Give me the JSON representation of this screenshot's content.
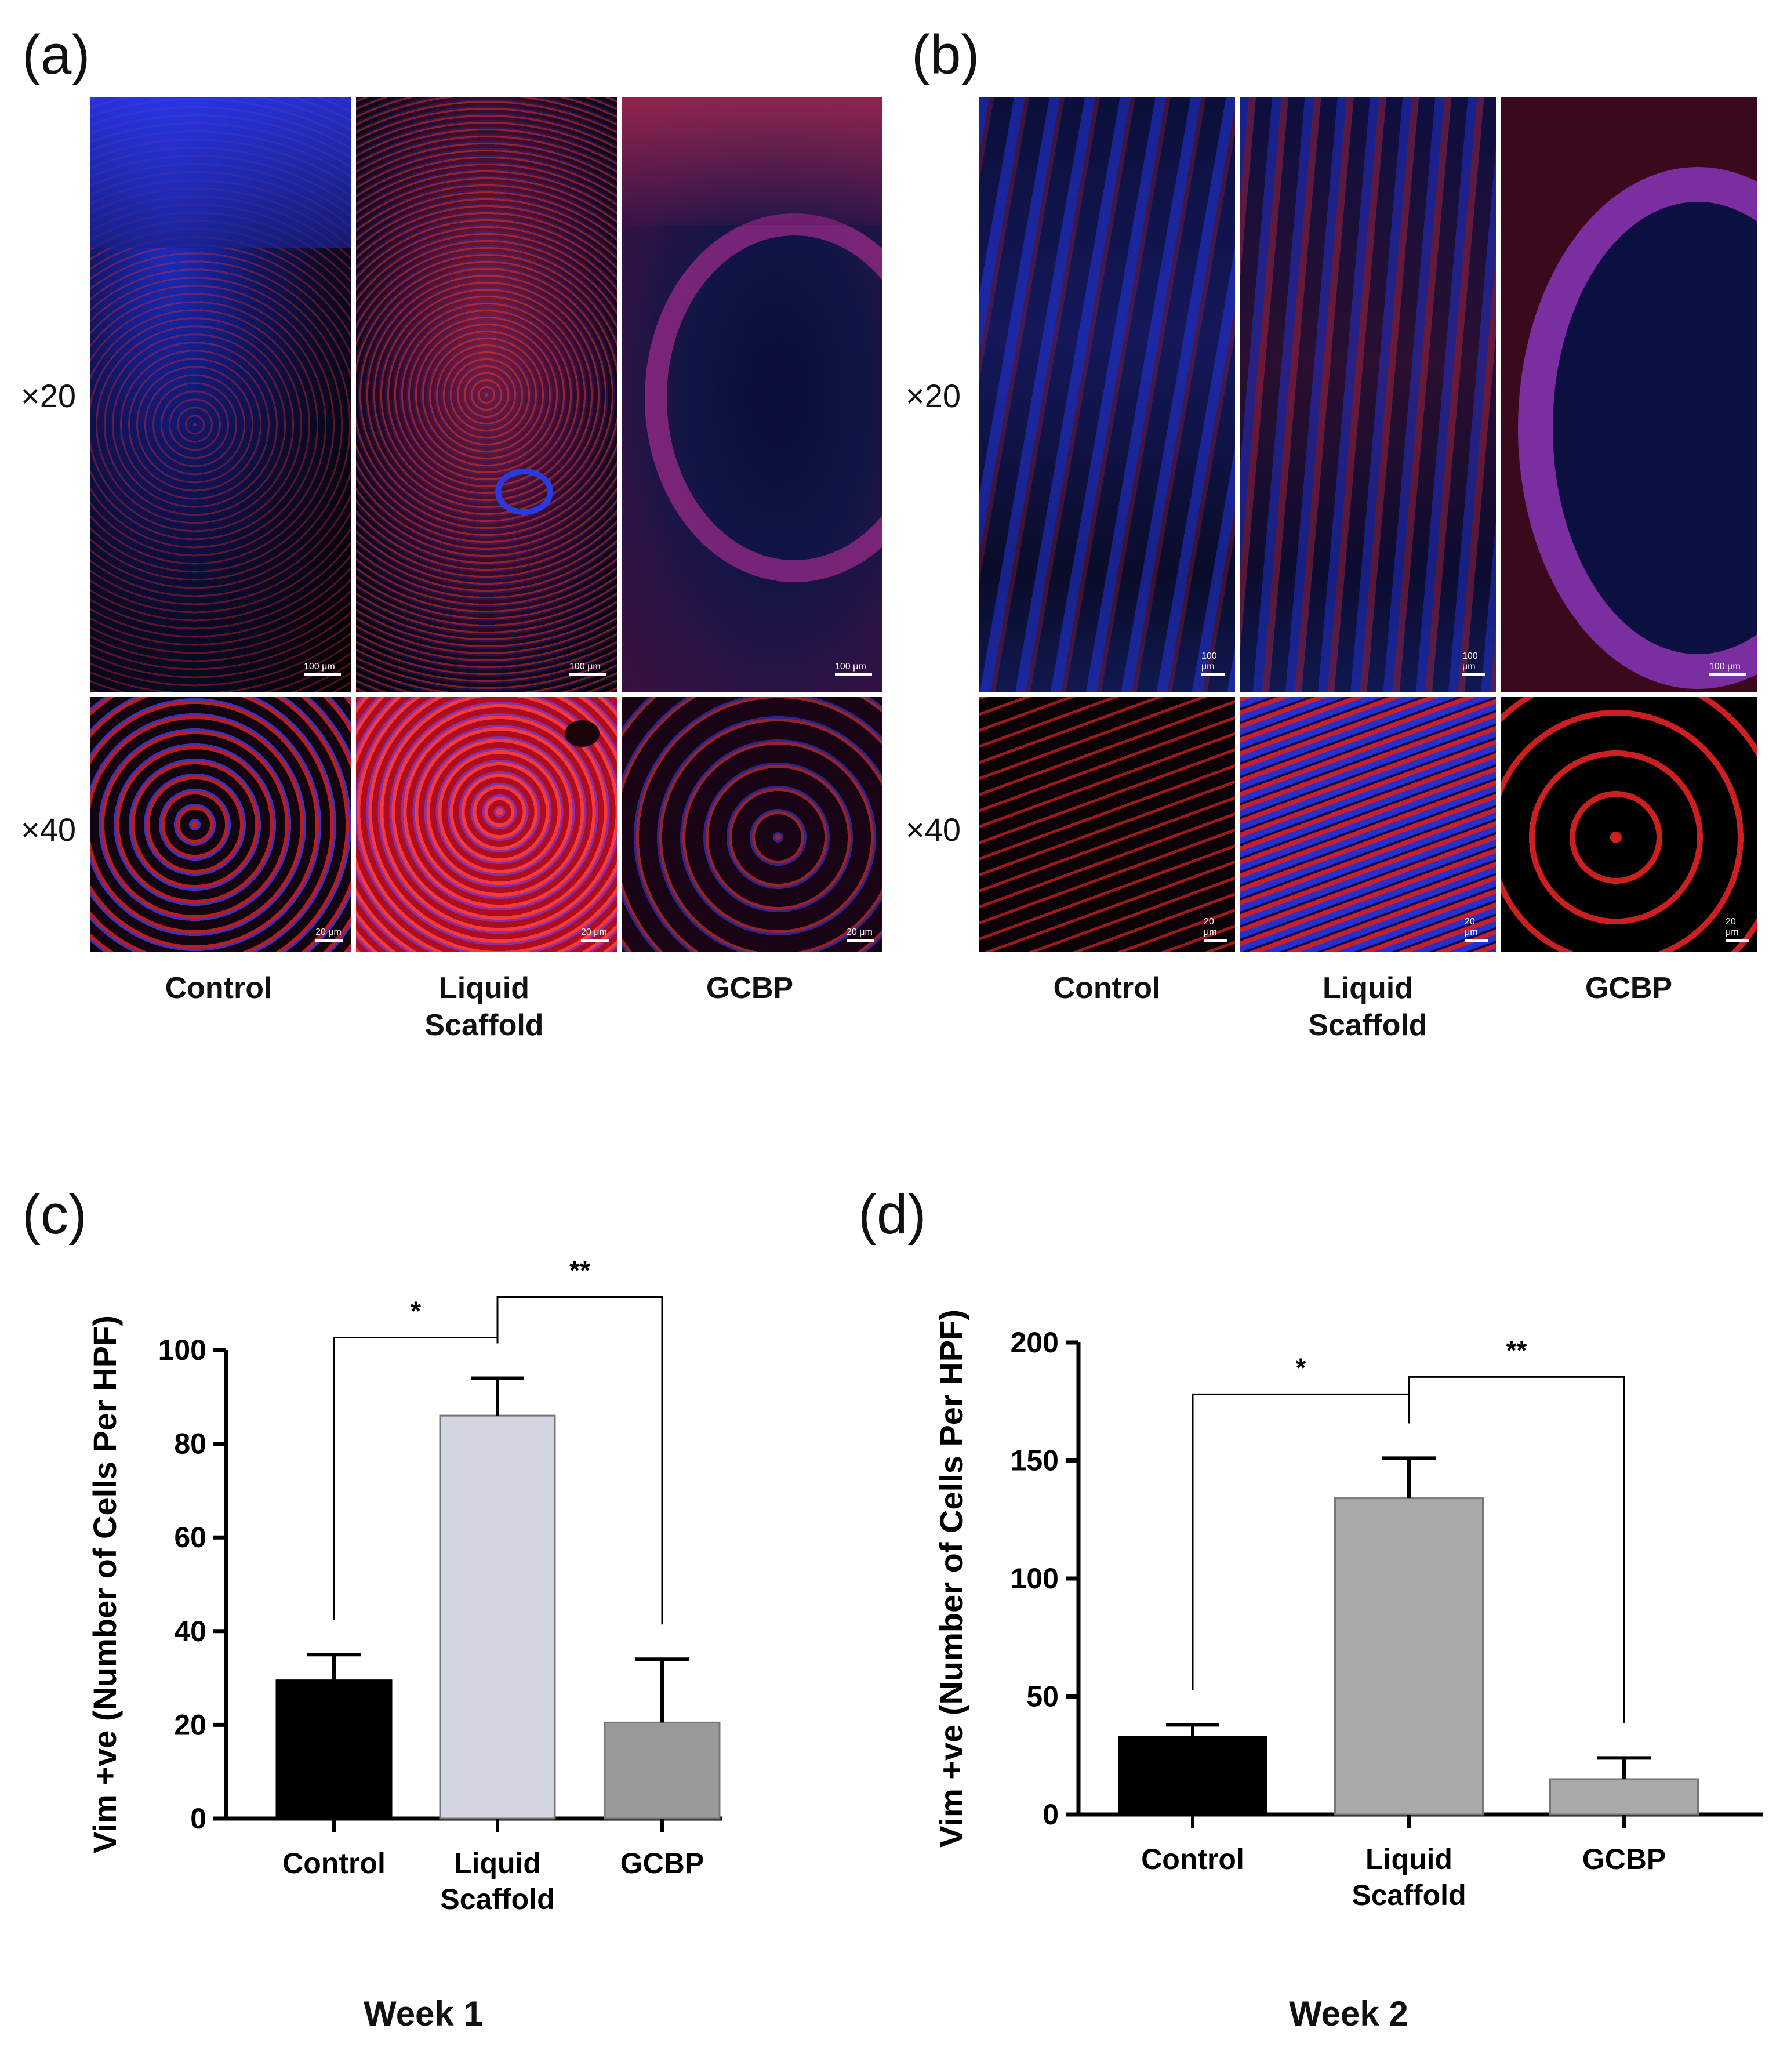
{
  "panel_labels": {
    "a": "(a)",
    "b": "(b)",
    "c": "(c)",
    "d": "(d)"
  },
  "magnifications": {
    "low": "×20",
    "high": "×40"
  },
  "micrograph_conditions": [
    {
      "line1": "Control",
      "line2": ""
    },
    {
      "line1": "Liquid",
      "line2": "Scaffold"
    },
    {
      "line1": "GCBP",
      "line2": ""
    }
  ],
  "scale_bars": {
    "low": "100 μm",
    "high": "20 μm"
  },
  "colors": {
    "nuclei": "#2a3cff",
    "vimentin": "#ff2a2a",
    "background": "#000000"
  },
  "chart_data": [
    {
      "type": "bar",
      "panel": "(c)",
      "caption": "Week 1",
      "ylabel": "Vim +ve (Number of Cells Per HPF)",
      "categories": [
        "Control",
        "Liquid Scaffold",
        "GCBP"
      ],
      "category_lines": [
        [
          "Control"
        ],
        [
          "Liquid",
          "Scaffold"
        ],
        [
          "GCBP"
        ]
      ],
      "values": [
        29.5,
        86,
        20.5
      ],
      "errors": [
        5.5,
        8,
        13.5
      ],
      "bar_colors": [
        "#000000",
        "#d3d5e0",
        "#999999"
      ],
      "ylim": [
        0,
        100
      ],
      "yticks": [
        "0",
        "20",
        "40",
        "60",
        "80",
        "100"
      ],
      "significance": [
        {
          "from": 0,
          "to": 1,
          "label": "*"
        },
        {
          "from": 1,
          "to": 2,
          "label": "**"
        }
      ]
    },
    {
      "type": "bar",
      "panel": "(d)",
      "caption": "Week 2",
      "ylabel": "Vim +ve (Number of Cells Per HPF)",
      "categories": [
        "Control",
        "Liquid Scaffold",
        "GCBP"
      ],
      "category_lines": [
        [
          "Control"
        ],
        [
          "Liquid",
          "Scaffold"
        ],
        [
          "GCBP"
        ]
      ],
      "values": [
        33,
        134,
        15
      ],
      "errors": [
        5,
        17,
        9
      ],
      "bar_colors": [
        "#000000",
        "#a9a9a9",
        "#a9a9a9"
      ],
      "ylim": [
        0,
        200
      ],
      "yticks": [
        "0",
        "50",
        "100",
        "150",
        "200"
      ],
      "significance": [
        {
          "from": 0,
          "to": 1,
          "label": "*"
        },
        {
          "from": 1,
          "to": 2,
          "label": "**"
        }
      ]
    }
  ]
}
